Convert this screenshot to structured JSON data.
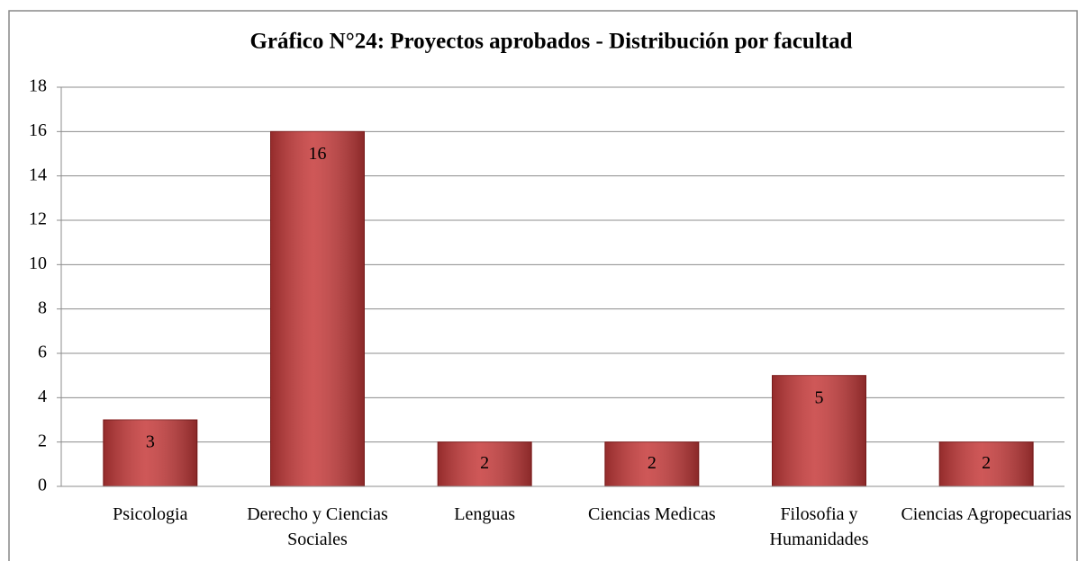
{
  "chart_data": {
    "type": "bar",
    "title": "Gráfico N°24: Proyectos aprobados - Distribución por facultad",
    "categories": [
      "Psicologia",
      "Derecho y Ciencias Sociales",
      "Lenguas",
      "Ciencias Medicas",
      "Filosofia y Humanidades",
      "Ciencias Agropecuarias"
    ],
    "values": [
      3,
      16,
      2,
      2,
      5,
      2
    ],
    "color": "#c63a3a",
    "ylim": [
      0,
      18
    ],
    "yticks": [
      0,
      2,
      4,
      6,
      8,
      10,
      12,
      14,
      16,
      18
    ],
    "grid": true
  }
}
